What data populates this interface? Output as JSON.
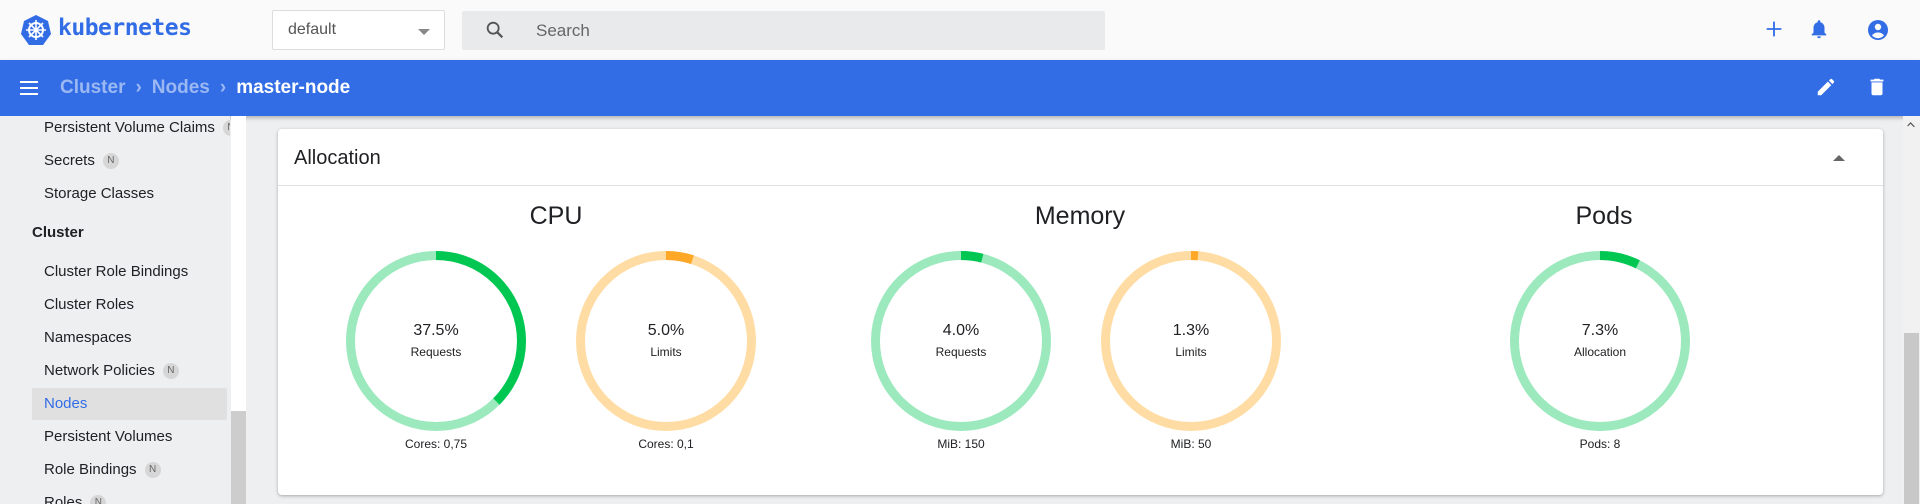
{
  "header": {
    "brand": "kubernetes",
    "namespace": "default",
    "search_placeholder": "Search",
    "icons": [
      "plus-icon",
      "bell-icon",
      "account-icon"
    ]
  },
  "breadcrumb": {
    "items": [
      "Cluster",
      "Nodes"
    ],
    "current": "master-node",
    "separator": "›",
    "actions": [
      "edit-icon",
      "delete-icon"
    ]
  },
  "sidebar": {
    "items_top": [
      {
        "label": "Persistent Volume Claims",
        "badge": "N"
      },
      {
        "label": "Secrets",
        "badge": "N"
      },
      {
        "label": "Storage Classes"
      }
    ],
    "section": "Cluster",
    "items": [
      {
        "label": "Cluster Role Bindings"
      },
      {
        "label": "Cluster Roles"
      },
      {
        "label": "Namespaces"
      },
      {
        "label": "Network Policies",
        "badge": "N"
      },
      {
        "label": "Nodes",
        "active": true
      },
      {
        "label": "Persistent Volumes"
      },
      {
        "label": "Role Bindings",
        "badge": "N"
      },
      {
        "label": "Roles",
        "badge": "N"
      }
    ]
  },
  "allocation": {
    "title": "Allocation",
    "groups": [
      {
        "title": "CPU",
        "charts": [
          {
            "pct": 37.5,
            "label": "37.5%",
            "sub": "Requests",
            "foot": "Cores: 0,75",
            "kind": "requests"
          },
          {
            "pct": 5.0,
            "label": "5.0%",
            "sub": "Limits",
            "foot": "Cores: 0,1",
            "kind": "limits"
          }
        ]
      },
      {
        "title": "Memory",
        "charts": [
          {
            "pct": 4.0,
            "label": "4.0%",
            "sub": "Requests",
            "foot": "MiB: 150",
            "kind": "requests"
          },
          {
            "pct": 1.3,
            "label": "1.3%",
            "sub": "Limits",
            "foot": "MiB: 50",
            "kind": "limits"
          }
        ]
      },
      {
        "title": "Pods",
        "charts": [
          {
            "pct": 7.3,
            "label": "7.3%",
            "sub": "Allocation",
            "foot": "Pods: 8",
            "kind": "requests"
          }
        ]
      }
    ]
  },
  "colors": {
    "brand": "#326de6",
    "requests": "#00c752",
    "requests_track": "#9be9bd",
    "limits": "#ffa726",
    "limits_track": "#ffdca3"
  }
}
